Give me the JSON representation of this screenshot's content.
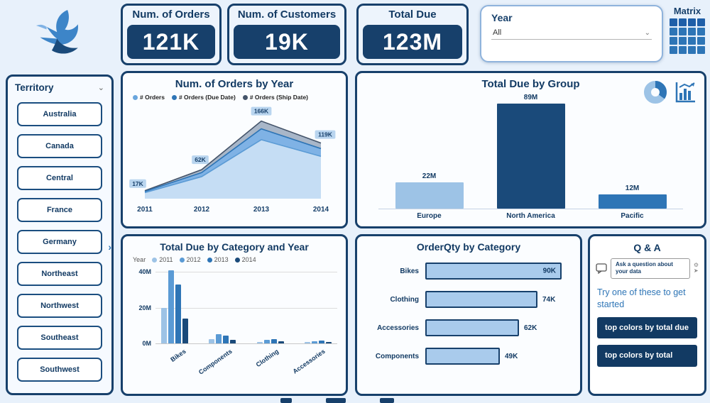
{
  "colors": {
    "navy": "#17406b",
    "medium_blue": "#2e75b6",
    "light_blue": "#9dc3e6",
    "background": "#e8f1fb"
  },
  "kpis": [
    {
      "label": "Num. of Orders",
      "value": "121K"
    },
    {
      "label": "Num. of Customers",
      "value": "19K"
    },
    {
      "label": "Total Due",
      "value": "123M"
    }
  ],
  "year_slicer": {
    "label": "Year",
    "value": "All"
  },
  "matrix": {
    "label": "Matrix"
  },
  "territory": {
    "label": "Territory",
    "items": [
      "Australia",
      "Canada",
      "Central",
      "France",
      "Germany",
      "Northeast",
      "Northwest",
      "Southeast",
      "Southwest"
    ]
  },
  "qa": {
    "title": "Q & A",
    "input_text": "Ask a question about your data",
    "hint": "Try one of these to get started",
    "suggestions": [
      "top colors by total due",
      "top colors by total"
    ]
  },
  "chart_data": [
    {
      "type": "area",
      "title": "Num. of Orders by Year",
      "x": [
        "2011",
        "2012",
        "2013",
        "2014"
      ],
      "values": [
        17,
        62,
        166,
        119
      ],
      "point_labels": [
        "17K",
        "62K",
        "166K",
        "119K"
      ],
      "series": [
        {
          "name": "# Orders",
          "color": "#6aa6dd"
        },
        {
          "name": "# Orders (Due Date)",
          "color": "#2e75b6"
        },
        {
          "name": "# Orders (Ship Date)",
          "color": "#44546a"
        }
      ],
      "ylim": [
        0,
        170
      ],
      "unit": "K"
    },
    {
      "type": "bar",
      "title": "Total Due by Group",
      "categories": [
        "Europe",
        "North America",
        "Pacific"
      ],
      "values": [
        22,
        89,
        12
      ],
      "value_labels": [
        "22M",
        "89M",
        "12M"
      ],
      "colors": [
        "#9dc3e6",
        "#1a4a7a",
        "#2e75b6"
      ],
      "ylim": [
        0,
        90
      ],
      "unit": "M"
    },
    {
      "type": "bar",
      "title": "Total Due by Category and Year",
      "legend_label": "Year",
      "categories": [
        "Bikes",
        "Components",
        "Clothing",
        "Accessories"
      ],
      "series": [
        {
          "name": "2011",
          "color": "#9dc3e6",
          "values": [
            20,
            2.5,
            0.8,
            0.4
          ]
        },
        {
          "name": "2012",
          "color": "#5b9bd5",
          "values": [
            41,
            5,
            1.8,
            1.0
          ]
        },
        {
          "name": "2013",
          "color": "#2e75b6",
          "values": [
            33,
            4.5,
            2.2,
            1.4
          ]
        },
        {
          "name": "2014",
          "color": "#1a4a7a",
          "values": [
            14,
            2,
            1.0,
            0.6
          ]
        }
      ],
      "yticks": [
        "0M",
        "20M",
        "40M"
      ],
      "ylim": [
        0,
        40
      ],
      "unit": "M"
    },
    {
      "type": "bar",
      "orientation": "horizontal",
      "title": "OrderQty by Category",
      "categories": [
        "Bikes",
        "Clothing",
        "Accessories",
        "Components"
      ],
      "values": [
        90,
        74,
        62,
        49
      ],
      "value_labels": [
        "90K",
        "74K",
        "62K",
        "49K"
      ],
      "bar_color": "#a9cbec",
      "unit": "K"
    }
  ]
}
